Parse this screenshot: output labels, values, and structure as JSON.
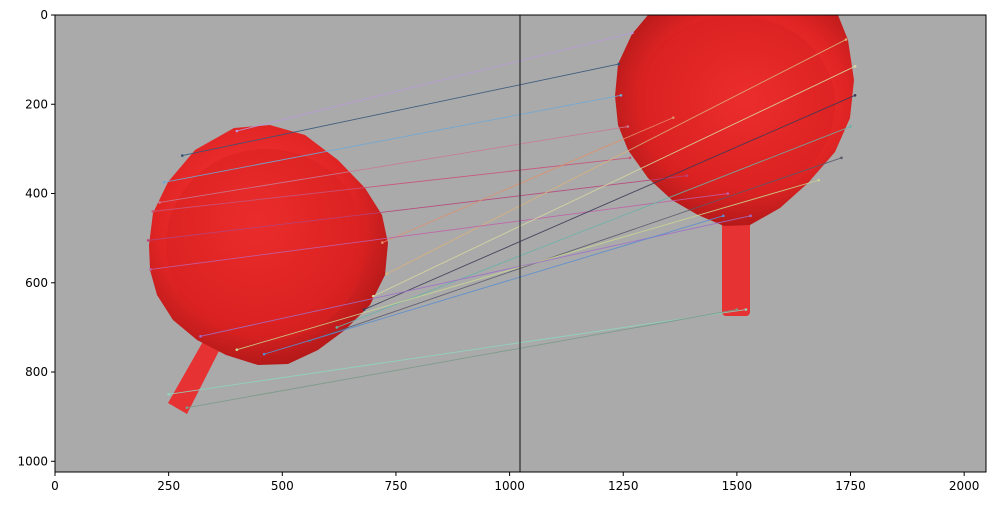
{
  "figure": {
    "x_ticks": [
      "0",
      "250",
      "500",
      "750",
      "1000",
      "1250",
      "1500",
      "1750",
      "2000"
    ],
    "y_ticks": [
      "0",
      "200",
      "400",
      "600",
      "800",
      "1000"
    ],
    "x_tick_values": [
      0,
      250,
      500,
      750,
      1000,
      1250,
      1500,
      1750,
      2000
    ],
    "y_tick_values": [
      0,
      200,
      400,
      600,
      800,
      1000
    ],
    "x_range": [
      0,
      2048
    ],
    "y_range": [
      1024,
      0
    ],
    "background_color": "#aaaaaa",
    "object_color": "#ff3333",
    "divider_x": 1024,
    "left_object": {
      "cx": 470,
      "cy": 500,
      "r": 260,
      "inner_r": 210
    },
    "right_object": {
      "cx": 1500,
      "cy": 180,
      "r": 255,
      "inner_r": 205
    },
    "matches": [
      {
        "x1": 400,
        "y1": 260,
        "x2": 1270,
        "y2": 40,
        "color": "#b89ad8"
      },
      {
        "x1": 280,
        "y1": 315,
        "x2": 1240,
        "y2": 110,
        "color": "#34557a"
      },
      {
        "x1": 240,
        "y1": 375,
        "x2": 1245,
        "y2": 180,
        "color": "#6fa8d6"
      },
      {
        "x1": 230,
        "y1": 420,
        "x2": 1260,
        "y2": 250,
        "color": "#c87a94"
      },
      {
        "x1": 215,
        "y1": 440,
        "x2": 1265,
        "y2": 320,
        "color": "#c9547b"
      },
      {
        "x1": 205,
        "y1": 505,
        "x2": 1390,
        "y2": 360,
        "color": "#b8437a"
      },
      {
        "x1": 720,
        "y1": 510,
        "x2": 1360,
        "y2": 230,
        "color": "#e0906a"
      },
      {
        "x1": 730,
        "y1": 580,
        "x2": 1740,
        "y2": 55,
        "color": "#d9b27a"
      },
      {
        "x1": 210,
        "y1": 570,
        "x2": 1480,
        "y2": 400,
        "color": "#c060a8"
      },
      {
        "x1": 700,
        "y1": 630,
        "x2": 1760,
        "y2": 115,
        "color": "#d8d8a0"
      },
      {
        "x1": 680,
        "y1": 660,
        "x2": 1760,
        "y2": 180,
        "color": "#3a3a55"
      },
      {
        "x1": 620,
        "y1": 700,
        "x2": 1750,
        "y2": 250,
        "color": "#6ab2a8"
      },
      {
        "x1": 560,
        "y1": 730,
        "x2": 1730,
        "y2": 320,
        "color": "#5a5a6a"
      },
      {
        "x1": 400,
        "y1": 750,
        "x2": 1680,
        "y2": 370,
        "color": "#c9d890"
      },
      {
        "x1": 320,
        "y1": 720,
        "x2": 1530,
        "y2": 450,
        "color": "#a070c8"
      },
      {
        "x1": 460,
        "y1": 760,
        "x2": 1470,
        "y2": 450,
        "color": "#5a8ed0"
      },
      {
        "x1": 250,
        "y1": 850,
        "x2": 1520,
        "y2": 660,
        "color": "#8fd6c0"
      },
      {
        "x1": 290,
        "y1": 880,
        "x2": 1500,
        "y2": 660,
        "color": "#7a9a88"
      }
    ]
  }
}
